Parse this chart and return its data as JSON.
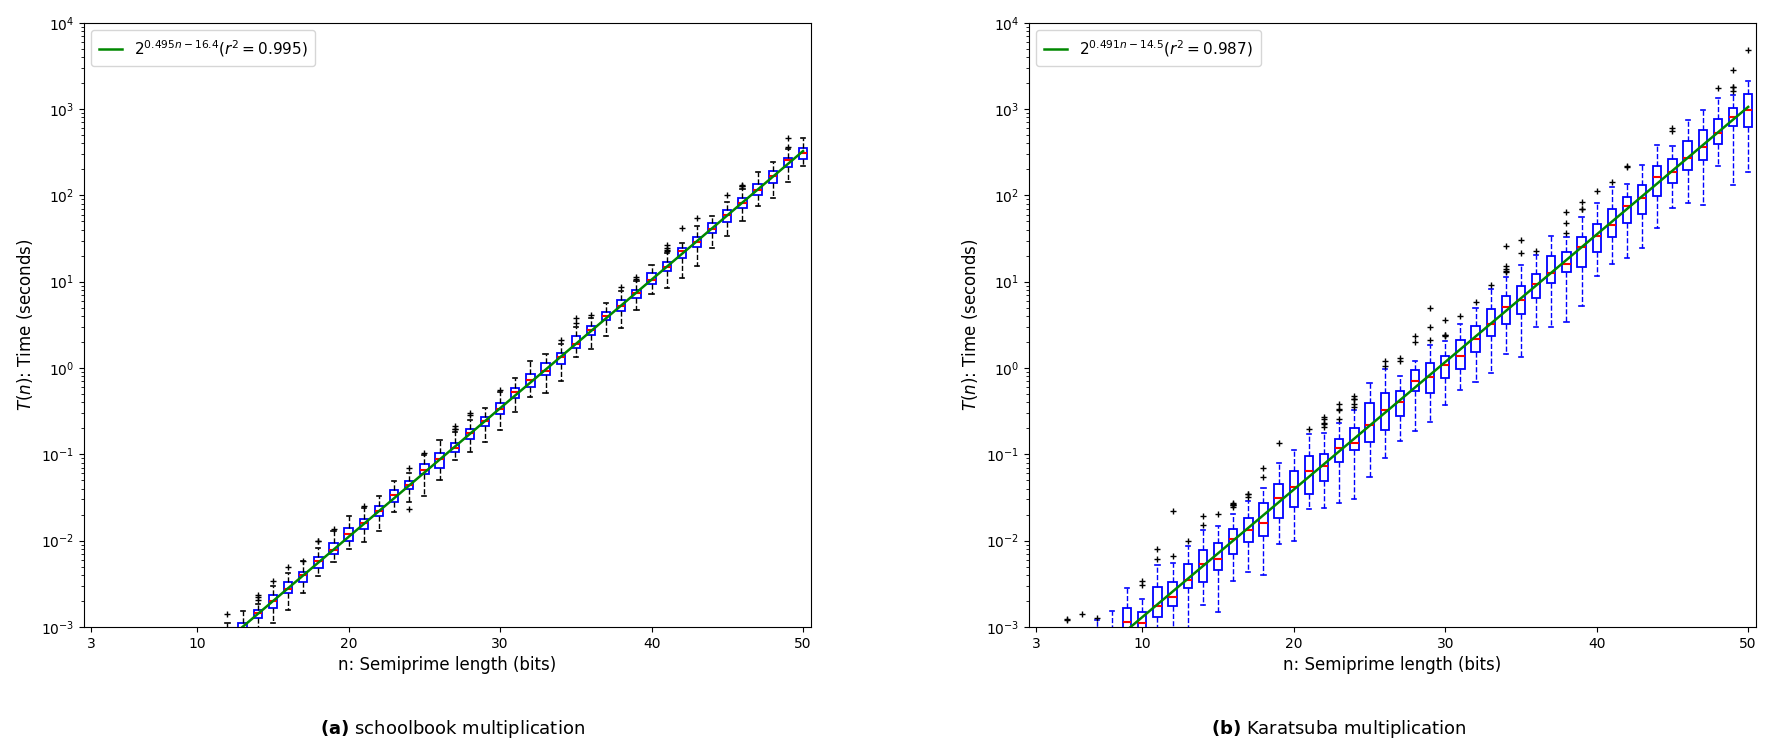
{
  "fit_a": {
    "slope": 0.495,
    "intercept": -16.4,
    "r2": 0.995
  },
  "fit_b": {
    "slope": 0.491,
    "intercept": -14.5,
    "r2": 0.987
  },
  "xlabel": "n: Semiprime length (bits)",
  "ylabel_math": "$T(n)$: Time (seconds)",
  "xlim": [
    3,
    50
  ],
  "ylim_log": [
    -3,
    4
  ],
  "title_a": "(a) schoolbook multiplication",
  "title_b": "(b) Karatsuba multiplication",
  "legend_a": "$2^{0.495n-16.4}(r^2=0.995)$",
  "legend_b": "$2^{0.491n-14.5}(r^2=0.987)$",
  "fit_color": "#008800",
  "box_color": "#0000ff",
  "median_color": "#ff0000",
  "whisker_color_a": "#000000",
  "whisker_color_b": "#0000ff",
  "cap_color_a": "#000000",
  "cap_color_b": "#0000ff",
  "flier_plus_color": "#000000",
  "flier_minus_color": "#000000",
  "background_color": "#ffffff",
  "n_start": 3,
  "n_end": 50,
  "xticks": [
    3,
    10,
    20,
    30,
    40,
    50
  ],
  "figsize": [
    17.73,
    7.41
  ],
  "dpi": 100,
  "box_width": 0.55,
  "log_spread_a": 0.22,
  "log_spread_b": 0.55,
  "n_samples": 50
}
